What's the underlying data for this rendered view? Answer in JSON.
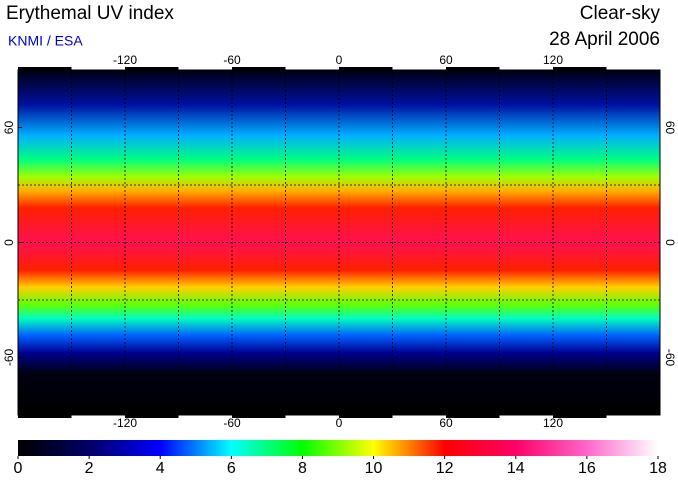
{
  "header": {
    "title": "Erythemal UV index",
    "source": "KNMI / ESA",
    "condition": "Clear-sky",
    "date": "28 April 2006"
  },
  "map": {
    "lon_range": [
      -180,
      180
    ],
    "lat_range": [
      -90,
      90
    ],
    "grid_step": 30,
    "lon_ticks": [
      -120,
      -60,
      0,
      60,
      120
    ],
    "lat_ticks": [
      60,
      0,
      -60
    ]
  },
  "colorbar": {
    "range": [
      0,
      18
    ],
    "ticks": [
      0,
      2,
      4,
      6,
      8,
      10,
      12,
      14,
      16,
      18
    ],
    "colors": [
      "#000000",
      "#000066",
      "#0000ff",
      "#00ffff",
      "#00ff00",
      "#ffff00",
      "#ff0000",
      "#ff0066",
      "#ff66cc",
      "#ffffff"
    ]
  }
}
